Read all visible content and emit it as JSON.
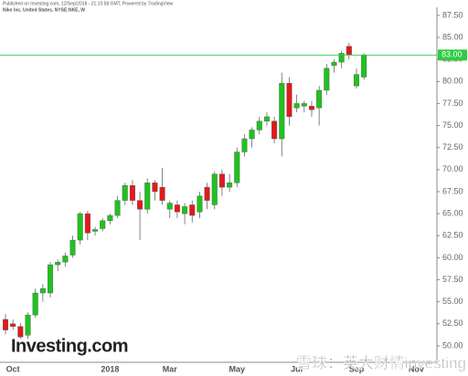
{
  "chart_data": {
    "type": "candlestick",
    "title": "Nike Inc, United States, NYSE:NKE, W",
    "subtitle": "Published on Investing.com, 12/Sep/2018 - 21:10:58 GMT, Powered by TradingView",
    "logo": "Investing.com",
    "watermark": "雪球：英大财情investing",
    "up_color": "#1ec31e",
    "down_color": "#e3191c",
    "categories": [
      null,
      "Oct",
      null,
      null,
      null,
      null,
      null,
      null,
      null,
      null,
      null,
      null,
      null,
      null,
      "2018",
      null,
      null,
      null,
      null,
      null,
      null,
      null,
      "Mar",
      null,
      null,
      null,
      null,
      null,
      null,
      null,
      null,
      "May",
      null,
      null,
      null,
      null,
      null,
      null,
      null,
      "Jul",
      null,
      null,
      null,
      null,
      null,
      null,
      null,
      "Sep",
      null,
      null,
      null,
      null,
      null,
      null,
      null,
      "Nov"
    ],
    "open": [
      53.0,
      52.5,
      52.2,
      51.2,
      53.5,
      56.0,
      56.0,
      59.2,
      59.5,
      60.3,
      62.0,
      65.0,
      63.0,
      63.3,
      64.2,
      64.8,
      66.5,
      68.2,
      66.5,
      65.5,
      68.5,
      68.0,
      65.5,
      66.0,
      65.0,
      66.0,
      65.2,
      68.0,
      66.0,
      69.5,
      68.0,
      68.5,
      72.0,
      73.5,
      74.5,
      75.5,
      75.5,
      73.5,
      79.8,
      77.0,
      77.2,
      77.2,
      77.0,
      79.0,
      81.8,
      82.2,
      84.0,
      79.5,
      80.5,
      null,
      null,
      null,
      null,
      null,
      null,
      null
    ],
    "high": [
      53.6,
      53.0,
      52.6,
      53.8,
      56.5,
      57.0,
      59.5,
      59.8,
      60.6,
      62.5,
      65.2,
      65.3,
      63.5,
      64.5,
      65.0,
      67.0,
      68.5,
      68.8,
      67.5,
      69.0,
      68.8,
      70.2,
      66.5,
      66.5,
      66.2,
      66.5,
      67.5,
      68.5,
      69.8,
      70.0,
      69.5,
      72.5,
      74.0,
      74.8,
      76.0,
      76.5,
      76.0,
      81.0,
      80.5,
      78.5,
      77.8,
      77.8,
      79.5,
      82.0,
      82.5,
      83.5,
      84.4,
      81.5,
      83.2,
      null,
      null,
      null,
      null,
      null,
      null,
      null
    ],
    "low": [
      51.3,
      51.8,
      50.8,
      50.8,
      53.2,
      55.0,
      55.5,
      58.5,
      59.0,
      60.0,
      61.5,
      62.0,
      62.5,
      63.0,
      63.8,
      64.5,
      66.0,
      66.0,
      62.0,
      65.0,
      66.5,
      66.0,
      64.5,
      64.5,
      63.8,
      64.0,
      64.5,
      65.5,
      65.5,
      67.0,
      67.5,
      68.0,
      71.5,
      72.5,
      74.0,
      75.0,
      73.0,
      71.5,
      75.0,
      76.5,
      76.5,
      76.0,
      75.0,
      78.5,
      81.0,
      81.5,
      82.5,
      79.2,
      80.2,
      null,
      null,
      null,
      null,
      null,
      null,
      null
    ],
    "close": [
      51.8,
      52.2,
      51.0,
      53.5,
      56.0,
      56.5,
      59.2,
      59.5,
      60.2,
      62.0,
      65.0,
      62.8,
      63.2,
      64.2,
      64.8,
      66.5,
      68.2,
      66.5,
      65.5,
      68.5,
      67.5,
      66.5,
      66.2,
      65.2,
      65.8,
      64.8,
      67.0,
      66.5,
      69.5,
      68.0,
      68.5,
      72.0,
      73.5,
      74.5,
      75.5,
      76.0,
      73.5,
      79.8,
      76.0,
      77.5,
      77.5,
      76.8,
      79.0,
      81.5,
      82.2,
      83.2,
      83.0,
      80.8,
      83.0,
      null,
      null,
      null,
      null,
      null,
      null,
      null
    ],
    "ylim": [
      48.13,
      88.42
    ],
    "yticks": [
      {
        "value": 50,
        "label": "50.00"
      },
      {
        "value": 52.5,
        "label": "52.50"
      },
      {
        "value": 55,
        "label": "55.00"
      },
      {
        "value": 57.5,
        "label": "57.50"
      },
      {
        "value": 60,
        "label": "60.00"
      },
      {
        "value": 62.5,
        "label": "62.50"
      },
      {
        "value": 65,
        "label": "65.00"
      },
      {
        "value": 67.5,
        "label": "67.50"
      },
      {
        "value": 70,
        "label": "70.00"
      },
      {
        "value": 72.5,
        "label": "72.50"
      },
      {
        "value": 75,
        "label": "75.00"
      },
      {
        "value": 77.5,
        "label": "77.50"
      },
      {
        "value": 80,
        "label": "80.00"
      },
      {
        "value": 82.5,
        "label": "82.50"
      },
      {
        "value": 85,
        "label": "85.00"
      },
      {
        "value": 87.5,
        "label": "87.50"
      }
    ],
    "last_price": {
      "value": 83,
      "label": "83.00"
    },
    "last_price_color": "#2ecc40",
    "grid": false
  }
}
